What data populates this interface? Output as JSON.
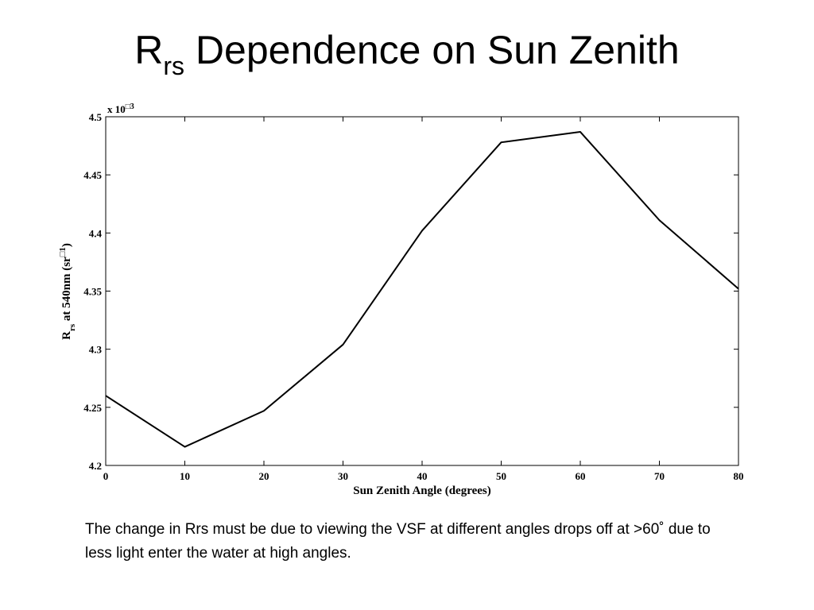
{
  "title": {
    "main": "R",
    "sub": "rs",
    "rest": " Dependence on Sun Zenith"
  },
  "chart_data": {
    "type": "line",
    "x": [
      0,
      10,
      20,
      30,
      40,
      50,
      60,
      70,
      80
    ],
    "series": [
      {
        "values": [
          4.26,
          4.216,
          4.247,
          4.304,
          4.402,
          4.478,
          4.487,
          4.411,
          4.352
        ]
      }
    ],
    "xlabel": "Sun Zenith Angle (degrees)",
    "ylabel": {
      "main": "R",
      "sub": "rs",
      "rest": " at 540nm (sr",
      "sup": "□1",
      "close": ")"
    },
    "xlim": [
      0,
      80
    ],
    "ylim": [
      4.2,
      4.5
    ],
    "xticks": [
      "0",
      "10",
      "20",
      "30",
      "40",
      "50",
      "60",
      "70",
      "80"
    ],
    "yticks": [
      "4.2",
      "4.25",
      "4.3",
      "4.35",
      "4.4",
      "4.45",
      "4.5"
    ],
    "multiplier": {
      "base": "x 10",
      "exp": "□3"
    },
    "grid": false,
    "line_color": "#000000"
  },
  "caption": "The change in Rrs must be due to viewing the VSF at different angles drops off at >60˚ due to less light enter the water at high angles."
}
